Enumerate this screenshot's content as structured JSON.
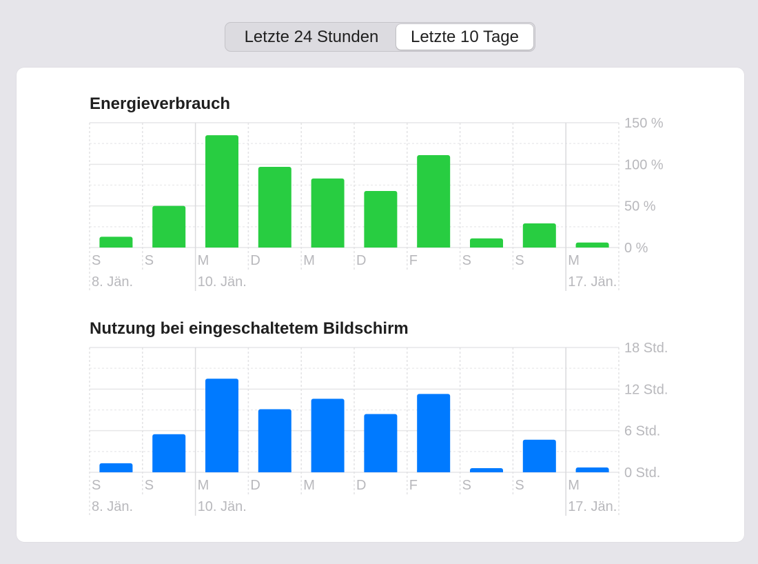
{
  "segmented": {
    "options": [
      "Letzte 24 Stunden",
      "Letzte 10 Tage"
    ],
    "selected_index": 1
  },
  "chart_data": [
    {
      "type": "bar",
      "title": "Energieverbrauch",
      "categories": [
        "S",
        "S",
        "M",
        "D",
        "M",
        "D",
        "F",
        "S",
        "S",
        "M"
      ],
      "date_labels": [
        "8. Jän.",
        "",
        "10. Jän.",
        "",
        "",
        "",
        "",
        "",
        "",
        "17. Jän."
      ],
      "values": [
        13,
        50,
        135,
        97,
        83,
        68,
        111,
        11,
        29,
        6
      ],
      "ylim": [
        0,
        150
      ],
      "yticks": [
        0,
        50,
        100,
        150
      ],
      "ytick_labels": [
        "0 %",
        "50 %",
        "100 %",
        "150 %"
      ],
      "color": "#28cd41",
      "grid": true
    },
    {
      "type": "bar",
      "title": "Nutzung bei eingeschaltetem Bildschirm",
      "categories": [
        "S",
        "S",
        "M",
        "D",
        "M",
        "D",
        "F",
        "S",
        "S",
        "M"
      ],
      "date_labels": [
        "8. Jän.",
        "",
        "10. Jän.",
        "",
        "",
        "",
        "",
        "",
        "",
        "17. Jän."
      ],
      "values": [
        1.3,
        5.5,
        13.5,
        9.1,
        10.6,
        8.4,
        11.3,
        0.6,
        4.7,
        0.7
      ],
      "ylim": [
        0,
        18
      ],
      "yticks": [
        0,
        6,
        12,
        18
      ],
      "ytick_labels": [
        "0 Std.",
        "6 Std.",
        "12 Std.",
        "18 Std."
      ],
      "color": "#007aff",
      "grid": true
    }
  ]
}
